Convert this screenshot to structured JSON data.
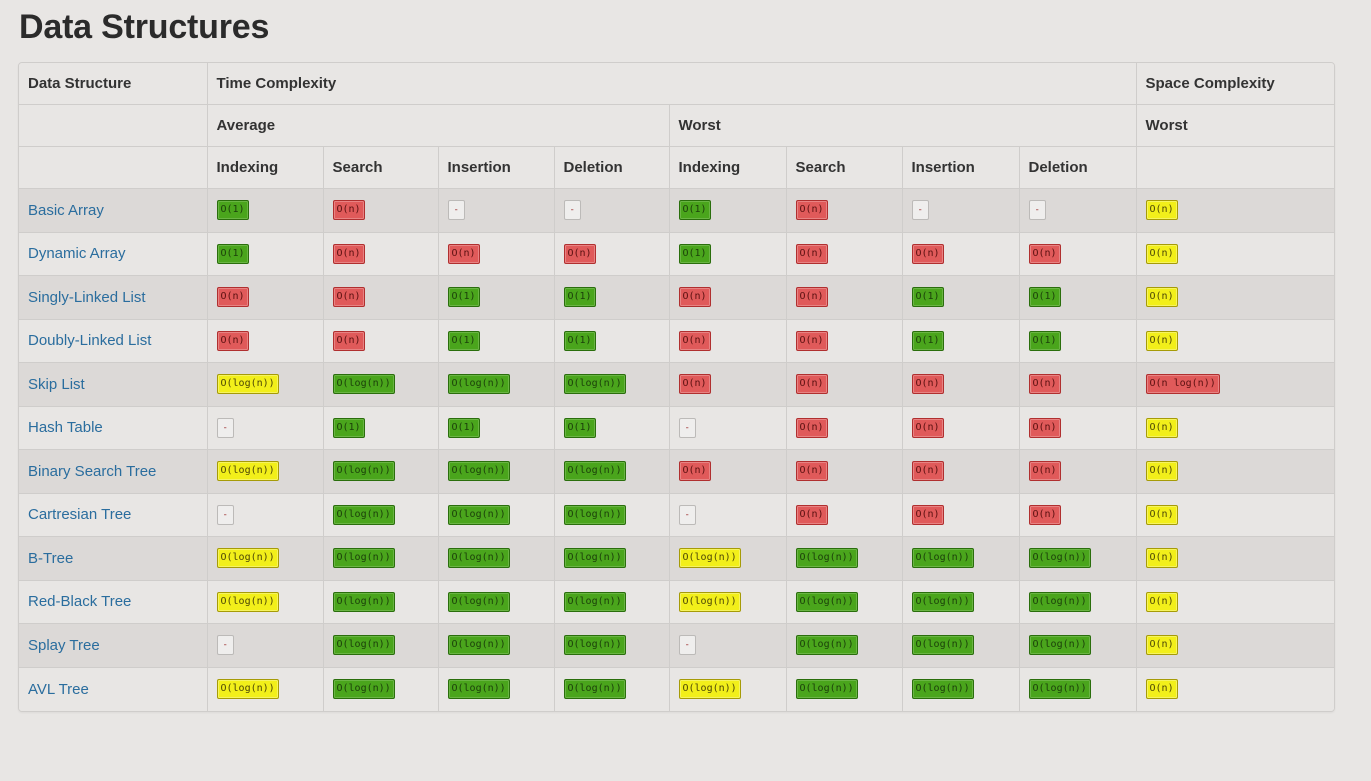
{
  "page": {
    "title": "Data Structures"
  },
  "colors": {
    "good": "#4aa51c",
    "bad": "#e05a5a",
    "fair": "#f2ef1a",
    "none": "#efeeed",
    "link": "#2a6d9e"
  },
  "header": {
    "row1": {
      "data_structure": "Data Structure",
      "time_complexity": "Time Complexity",
      "space_complexity": "Space Complexity"
    },
    "row2": {
      "average": "Average",
      "worst": "Worst",
      "space_worst": "Worst"
    },
    "row3": {
      "average": [
        "Indexing",
        "Search",
        "Insertion",
        "Deletion"
      ],
      "worst": [
        "Indexing",
        "Search",
        "Insertion",
        "Deletion"
      ]
    }
  },
  "rows": [
    {
      "name": "Basic Array",
      "cells": [
        {
          "v": "O(1)",
          "c": "green"
        },
        {
          "v": "O(n)",
          "c": "red"
        },
        {
          "v": "-",
          "c": "gray"
        },
        {
          "v": "-",
          "c": "gray"
        },
        {
          "v": "O(1)",
          "c": "green"
        },
        {
          "v": "O(n)",
          "c": "red"
        },
        {
          "v": "-",
          "c": "gray"
        },
        {
          "v": "-",
          "c": "gray"
        },
        {
          "v": "O(n)",
          "c": "yellow"
        }
      ]
    },
    {
      "name": "Dynamic Array",
      "cells": [
        {
          "v": "O(1)",
          "c": "green"
        },
        {
          "v": "O(n)",
          "c": "red"
        },
        {
          "v": "O(n)",
          "c": "red"
        },
        {
          "v": "O(n)",
          "c": "red"
        },
        {
          "v": "O(1)",
          "c": "green"
        },
        {
          "v": "O(n)",
          "c": "red"
        },
        {
          "v": "O(n)",
          "c": "red"
        },
        {
          "v": "O(n)",
          "c": "red"
        },
        {
          "v": "O(n)",
          "c": "yellow"
        }
      ]
    },
    {
      "name": "Singly-Linked List",
      "cells": [
        {
          "v": "O(n)",
          "c": "red"
        },
        {
          "v": "O(n)",
          "c": "red"
        },
        {
          "v": "O(1)",
          "c": "green"
        },
        {
          "v": "O(1)",
          "c": "green"
        },
        {
          "v": "O(n)",
          "c": "red"
        },
        {
          "v": "O(n)",
          "c": "red"
        },
        {
          "v": "O(1)",
          "c": "green"
        },
        {
          "v": "O(1)",
          "c": "green"
        },
        {
          "v": "O(n)",
          "c": "yellow"
        }
      ]
    },
    {
      "name": "Doubly-Linked List",
      "cells": [
        {
          "v": "O(n)",
          "c": "red"
        },
        {
          "v": "O(n)",
          "c": "red"
        },
        {
          "v": "O(1)",
          "c": "green"
        },
        {
          "v": "O(1)",
          "c": "green"
        },
        {
          "v": "O(n)",
          "c": "red"
        },
        {
          "v": "O(n)",
          "c": "red"
        },
        {
          "v": "O(1)",
          "c": "green"
        },
        {
          "v": "O(1)",
          "c": "green"
        },
        {
          "v": "O(n)",
          "c": "yellow"
        }
      ]
    },
    {
      "name": "Skip List",
      "cells": [
        {
          "v": "O(log(n))",
          "c": "yellow"
        },
        {
          "v": "O(log(n))",
          "c": "green"
        },
        {
          "v": "O(log(n))",
          "c": "green"
        },
        {
          "v": "O(log(n))",
          "c": "green"
        },
        {
          "v": "O(n)",
          "c": "red"
        },
        {
          "v": "O(n)",
          "c": "red"
        },
        {
          "v": "O(n)",
          "c": "red"
        },
        {
          "v": "O(n)",
          "c": "red"
        },
        {
          "v": "O(n log(n))",
          "c": "red"
        }
      ]
    },
    {
      "name": "Hash Table",
      "cells": [
        {
          "v": "-",
          "c": "gray"
        },
        {
          "v": "O(1)",
          "c": "green"
        },
        {
          "v": "O(1)",
          "c": "green"
        },
        {
          "v": "O(1)",
          "c": "green"
        },
        {
          "v": "-",
          "c": "gray"
        },
        {
          "v": "O(n)",
          "c": "red"
        },
        {
          "v": "O(n)",
          "c": "red"
        },
        {
          "v": "O(n)",
          "c": "red"
        },
        {
          "v": "O(n)",
          "c": "yellow"
        }
      ]
    },
    {
      "name": "Binary Search Tree",
      "cells": [
        {
          "v": "O(log(n))",
          "c": "yellow"
        },
        {
          "v": "O(log(n))",
          "c": "green"
        },
        {
          "v": "O(log(n))",
          "c": "green"
        },
        {
          "v": "O(log(n))",
          "c": "green"
        },
        {
          "v": "O(n)",
          "c": "red"
        },
        {
          "v": "O(n)",
          "c": "red"
        },
        {
          "v": "O(n)",
          "c": "red"
        },
        {
          "v": "O(n)",
          "c": "red"
        },
        {
          "v": "O(n)",
          "c": "yellow"
        }
      ]
    },
    {
      "name": "Cartresian Tree",
      "cells": [
        {
          "v": "-",
          "c": "gray"
        },
        {
          "v": "O(log(n))",
          "c": "green"
        },
        {
          "v": "O(log(n))",
          "c": "green"
        },
        {
          "v": "O(log(n))",
          "c": "green"
        },
        {
          "v": "-",
          "c": "gray"
        },
        {
          "v": "O(n)",
          "c": "red"
        },
        {
          "v": "O(n)",
          "c": "red"
        },
        {
          "v": "O(n)",
          "c": "red"
        },
        {
          "v": "O(n)",
          "c": "yellow"
        }
      ]
    },
    {
      "name": "B-Tree",
      "cells": [
        {
          "v": "O(log(n))",
          "c": "yellow"
        },
        {
          "v": "O(log(n))",
          "c": "green"
        },
        {
          "v": "O(log(n))",
          "c": "green"
        },
        {
          "v": "O(log(n))",
          "c": "green"
        },
        {
          "v": "O(log(n))",
          "c": "yellow"
        },
        {
          "v": "O(log(n))",
          "c": "green"
        },
        {
          "v": "O(log(n))",
          "c": "green"
        },
        {
          "v": "O(log(n))",
          "c": "green"
        },
        {
          "v": "O(n)",
          "c": "yellow"
        }
      ]
    },
    {
      "name": "Red-Black Tree",
      "cells": [
        {
          "v": "O(log(n))",
          "c": "yellow"
        },
        {
          "v": "O(log(n))",
          "c": "green"
        },
        {
          "v": "O(log(n))",
          "c": "green"
        },
        {
          "v": "O(log(n))",
          "c": "green"
        },
        {
          "v": "O(log(n))",
          "c": "yellow"
        },
        {
          "v": "O(log(n))",
          "c": "green"
        },
        {
          "v": "O(log(n))",
          "c": "green"
        },
        {
          "v": "O(log(n))",
          "c": "green"
        },
        {
          "v": "O(n)",
          "c": "yellow"
        }
      ]
    },
    {
      "name": "Splay Tree",
      "cells": [
        {
          "v": "-",
          "c": "gray"
        },
        {
          "v": "O(log(n))",
          "c": "green"
        },
        {
          "v": "O(log(n))",
          "c": "green"
        },
        {
          "v": "O(log(n))",
          "c": "green"
        },
        {
          "v": "-",
          "c": "gray"
        },
        {
          "v": "O(log(n))",
          "c": "green"
        },
        {
          "v": "O(log(n))",
          "c": "green"
        },
        {
          "v": "O(log(n))",
          "c": "green"
        },
        {
          "v": "O(n)",
          "c": "yellow"
        }
      ]
    },
    {
      "name": "AVL Tree",
      "cells": [
        {
          "v": "O(log(n))",
          "c": "yellow"
        },
        {
          "v": "O(log(n))",
          "c": "green"
        },
        {
          "v": "O(log(n))",
          "c": "green"
        },
        {
          "v": "O(log(n))",
          "c": "green"
        },
        {
          "v": "O(log(n))",
          "c": "yellow"
        },
        {
          "v": "O(log(n))",
          "c": "green"
        },
        {
          "v": "O(log(n))",
          "c": "green"
        },
        {
          "v": "O(log(n))",
          "c": "green"
        },
        {
          "v": "O(n)",
          "c": "yellow"
        }
      ]
    }
  ]
}
